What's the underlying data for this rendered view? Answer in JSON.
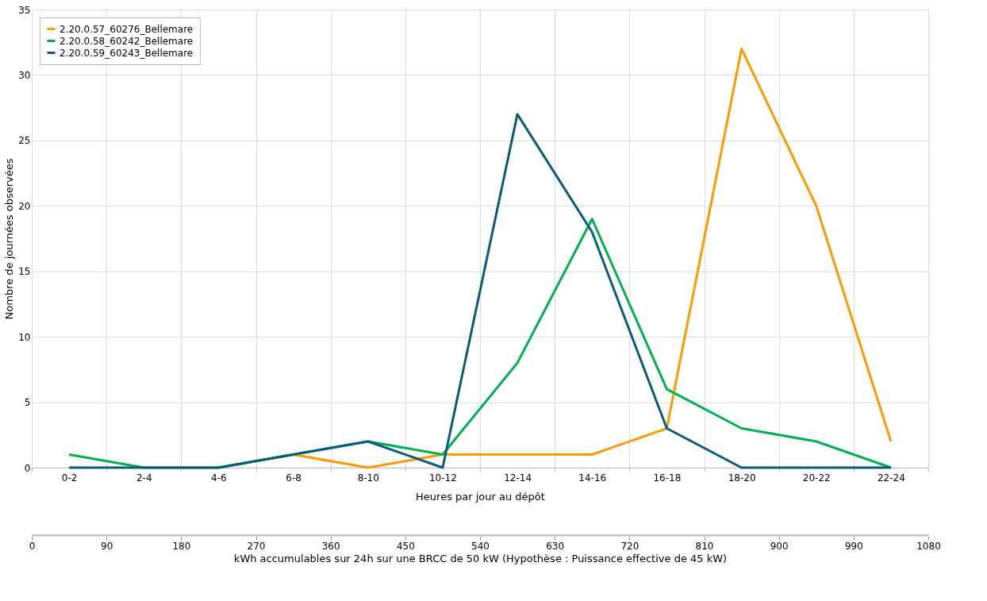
{
  "chart_data": {
    "type": "line",
    "categories": [
      "0-2",
      "2-4",
      "4-6",
      "6-8",
      "8-10",
      "10-12",
      "12-14",
      "14-16",
      "16-18",
      "18-20",
      "20-22",
      "22-24"
    ],
    "series": [
      {
        "name": "2.20.0.57_60276_Bellemare",
        "color": "#ff9900",
        "values": [
          null,
          null,
          0,
          1,
          0,
          1,
          1,
          1,
          3,
          32,
          20,
          2
        ]
      },
      {
        "name": "2.20.0.58_60242_Bellemare",
        "color": "#00b050",
        "values": [
          1,
          0,
          0,
          1,
          2,
          1,
          8,
          19,
          6,
          3,
          2,
          0
        ]
      },
      {
        "name": "2.20.0.59_60243_Bellemare",
        "color": "#0a5b78",
        "values": [
          0,
          0,
          0,
          1,
          2,
          0,
          27,
          18,
          3,
          0,
          0,
          0
        ]
      }
    ],
    "xlabel": "Heures par jour au dépôt",
    "ylabel": "Nombre de journées observées",
    "ylim": [
      0,
      35
    ],
    "yticks": [
      0,
      5,
      10,
      15,
      20,
      25,
      30,
      35
    ],
    "x2lim": [
      0,
      1080
    ],
    "x2ticks": [
      0,
      90,
      180,
      270,
      360,
      450,
      540,
      630,
      720,
      810,
      900,
      990,
      1080
    ],
    "x2label": "kWh accumulables sur 24h sur une BRCC de 50 kW (Hypothèse : Puissance effective de 45 kW)",
    "grid": true,
    "legend": "top left",
    "marker": "none",
    "line_style": "solid"
  }
}
